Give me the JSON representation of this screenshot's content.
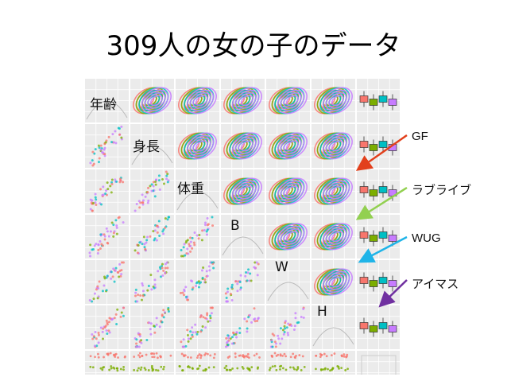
{
  "slide": {
    "title": "309人の女の子のデータ"
  },
  "matrix": {
    "variables": [
      "年齢",
      "身長",
      "体重",
      "B",
      "W",
      "H"
    ],
    "groups": [
      {
        "name": "GF",
        "color": "#f8766d"
      },
      {
        "name": "ラブライブ",
        "color": "#7cae00"
      },
      {
        "name": "WUG",
        "color": "#00bfc4"
      },
      {
        "name": "アイマス",
        "color": "#c77cff"
      }
    ]
  },
  "annotations": [
    {
      "label": "GF",
      "arrow_color": "#e2401c"
    },
    {
      "label": "ラブライブ",
      "arrow_color": "#92d050"
    },
    {
      "label": "WUG",
      "arrow_color": "#1fb4e8"
    },
    {
      "label": "アイマス",
      "arrow_color": "#7030a0"
    }
  ]
}
